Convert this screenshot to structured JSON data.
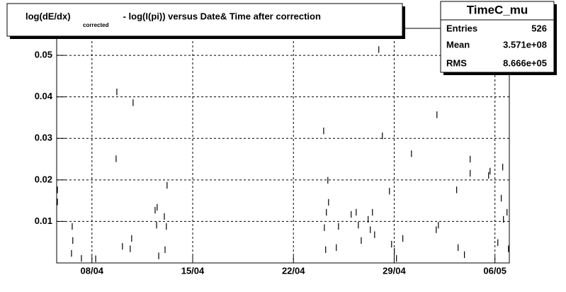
{
  "chart_data": {
    "type": "scatter",
    "title_parts": [
      "log(dE/dx)",
      "corrected",
      " - log(I(pi)) versus Date& Time after correction"
    ],
    "stats": {
      "name": "TimeC_mu",
      "rows": [
        [
          "Entries",
          "526"
        ],
        [
          "Mean",
          "3.571e+08"
        ],
        [
          "RMS",
          "8.666e+05"
        ]
      ]
    },
    "x": [
      5.6,
      5.6,
      6.63,
      6.67,
      6.58,
      7.27,
      8.26,
      9.73,
      9.68,
      10.12,
      10.86,
      10.76,
      10.66,
      12.39,
      12.53,
      12.49,
      12.64,
      13.08,
      13.17,
      13.22,
      13.03,
      24.1,
      24.15,
      24.29,
      24.39,
      24.44,
      24.24,
      24.98,
      25.13,
      26.01,
      26.36,
      26.51,
      26.71,
      27.19,
      27.34,
      27.49,
      27.64,
      27.93,
      28.18,
      28.67,
      28.82,
      29.01,
      29.16,
      29.6,
      30.2,
      31.97,
      31.92,
      32.07,
      33.34,
      33.44,
      33.88,
      34.28,
      34.28,
      35.56,
      35.66,
      36.2,
      36.44,
      36.54,
      36.59,
      36.84,
      36.94
    ],
    "values": [
      0.0176,
      0.0147,
      0.0088,
      0.0054,
      0.0023,
      0.0011,
      0.001,
      0.0412,
      0.0251,
      0.004,
      0.0386,
      0.0059,
      0.0034,
      0.0127,
      0.0134,
      0.0091,
      0.0017,
      0.0032,
      0.0088,
      0.0187,
      0.0112,
      0.0318,
      0.0085,
      0.0122,
      0.0199,
      0.0146,
      0.0032,
      0.0037,
      0.0088,
      0.0117,
      0.0122,
      0.0091,
      0.0054,
      0.0105,
      0.008,
      0.0122,
      0.0068,
      0.0514,
      0.0306,
      0.0173,
      0.0045,
      0.0028,
      0.0011,
      0.0059,
      0.0263,
      0.0357,
      0.008,
      0.0091,
      0.0176,
      0.0037,
      0.002,
      0.025,
      0.0216,
      0.0211,
      0.0221,
      0.0049,
      0.0156,
      0.0231,
      0.0105,
      0.0122,
      0.0034
    ],
    "errors": [
      0.0008,
      0.0008,
      0.0008,
      0.0008,
      0.0008,
      0.0008,
      0.0008,
      0.0008,
      0.0008,
      0.0008,
      0.0008,
      0.0008,
      0.0008,
      0.0008,
      0.0008,
      0.0008,
      0.0008,
      0.0008,
      0.0008,
      0.0008,
      0.0008,
      0.0008,
      0.0008,
      0.0008,
      0.0008,
      0.0008,
      0.0008,
      0.0008,
      0.0008,
      0.0008,
      0.0008,
      0.0008,
      0.0008,
      0.0008,
      0.0008,
      0.0008,
      0.0008,
      0.0008,
      0.0008,
      0.0008,
      0.0008,
      0.0008,
      0.0008,
      0.0008,
      0.0008,
      0.0008,
      0.0008,
      0.0008,
      0.0008,
      0.0008,
      0.0008,
      0.0008,
      0.0008,
      0.0008,
      0.0008,
      0.0008,
      0.0008,
      0.0008,
      0.0008,
      0.0008,
      0.0008
    ],
    "color": "#000000",
    "xlim": [
      5.55,
      37.0
    ],
    "xticks": [
      {
        "value": 8,
        "label": "08/04"
      },
      {
        "value": 15,
        "label": "15/04"
      },
      {
        "value": 22,
        "label": "22/04"
      },
      {
        "value": 29,
        "label": "29/04"
      },
      {
        "value": 36,
        "label": "06/05"
      }
    ],
    "ylim": [
      0,
      0.0565
    ],
    "yticks": [
      0.01,
      0.02,
      0.03,
      0.04,
      0.05
    ],
    "grid": true
  }
}
